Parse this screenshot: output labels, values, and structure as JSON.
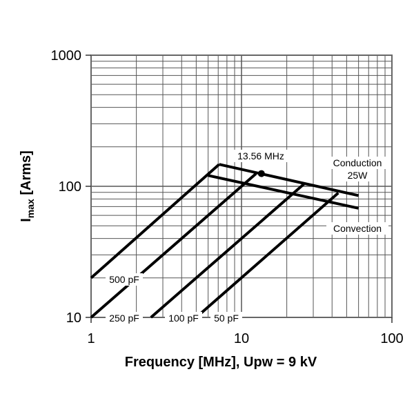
{
  "chart_data": {
    "type": "line",
    "title": "",
    "xlabel": "Frequency [MHz], Upw = 9 kV",
    "ylabel": {
      "main": "I",
      "sub": "max",
      "rest": " [Arms]"
    },
    "xscale": "log",
    "yscale": "log",
    "xlim": [
      1,
      100
    ],
    "ylim": [
      10,
      1000
    ],
    "grid": true,
    "x_ticks": [
      "1",
      "10",
      "100"
    ],
    "y_ticks": [
      "1000",
      "100",
      "10"
    ],
    "series": [
      {
        "name": "500 pF",
        "x": [
          1,
          7.1
        ],
        "y": [
          20,
          147
        ]
      },
      {
        "name": "250 pF",
        "x": [
          1,
          12.5
        ],
        "y": [
          10,
          125
        ]
      },
      {
        "name": "100 pF",
        "x": [
          2.5,
          26
        ],
        "y": [
          10,
          104
        ]
      },
      {
        "name": "50 pF",
        "x": [
          5,
          44
        ],
        "y": [
          10,
          89
        ]
      },
      {
        "name": "Conduction 25W",
        "x": [
          7.1,
          60
        ],
        "y": [
          147,
          85
        ]
      },
      {
        "name": "Convection",
        "x": [
          6,
          60
        ],
        "y": [
          121,
          68
        ]
      }
    ],
    "annotations": [
      {
        "text": "13.56 MHz",
        "x": 13.56,
        "y": 125,
        "marker": "dot"
      },
      {
        "text": "Conduction"
      },
      {
        "text": "25W"
      },
      {
        "text": "Convection"
      },
      {
        "text": "500 pF"
      },
      {
        "text": "250 pF"
      },
      {
        "text": "100 pF"
      },
      {
        "text": "50 pF"
      }
    ],
    "colors": {
      "lines": "#000000",
      "grid": "#555555"
    }
  }
}
